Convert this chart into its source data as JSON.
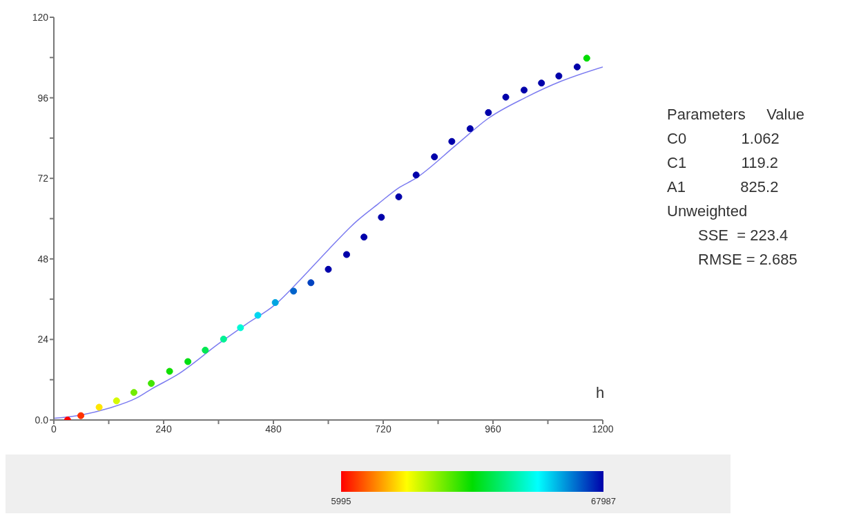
{
  "chart_data": {
    "type": "scatter",
    "xlabel": "h",
    "xlim": [
      0,
      1200
    ],
    "xticks": [
      0,
      {
        "value": 120,
        "label": null
      },
      240,
      {
        "value": 360,
        "label": null
      },
      480,
      {
        "value": 600,
        "label": null
      },
      720,
      {
        "value": 840,
        "label": null
      },
      960,
      {
        "value": 1080,
        "label": null
      },
      1200
    ],
    "ylim": [
      0,
      120
    ],
    "yticks": [
      {
        "value": 0,
        "label": "0.0"
      },
      {
        "value": 12,
        "label": null
      },
      24,
      {
        "value": 36,
        "label": null
      },
      48,
      {
        "value": 60,
        "label": null
      },
      72,
      {
        "value": 84,
        "label": null
      },
      96,
      {
        "value": 108,
        "label": null
      },
      120
    ],
    "grid": false,
    "marker": "circle",
    "clabel": null,
    "clim": [
      5995,
      67987
    ],
    "cticks": [
      5995,
      67987
    ],
    "series": [
      {
        "x": [
          30,
          59,
          99,
          137,
          175,
          213,
          253,
          293,
          331,
          371,
          408,
          446,
          484,
          524,
          562,
          600,
          640,
          678,
          716,
          754,
          792,
          832,
          870,
          910,
          950,
          988,
          1028,
          1066,
          1104,
          1144,
          1165
        ],
        "values": [
          0,
          1.3,
          3.8,
          5.7,
          8.2,
          10.9,
          14.5,
          17.4,
          20.8,
          24.1,
          27.5,
          31.2,
          35,
          38.4,
          40.9,
          44.9,
          49.3,
          54.5,
          60.4,
          66.5,
          73,
          78.4,
          83,
          86.8,
          91.6,
          96.2,
          98.3,
          100.4,
          102.5,
          105.2,
          107.8
        ],
        "colors": [
          "#ff0000",
          "#ff3100",
          "#ffe600",
          "#d6fa00",
          "#73ec00",
          "#42e600",
          "#10df00",
          "#00df11",
          "#00e852",
          "#00f194",
          "#00fad6",
          "#00d6f1",
          "#00a5e1",
          "#0063cb",
          "#0042c0",
          "#0000aa",
          "#0000aa",
          "#0000aa",
          "#0000aa",
          "#0000aa",
          "#0000aa",
          "#0000aa",
          "#0000aa",
          "#0000aa",
          "#0000aa",
          "#0000aa",
          "#0000aa",
          "#0000aa",
          "#0000aa",
          "#0000aa",
          "#00dd00"
        ],
        "cvalues": [
          5995,
          9000,
          20000,
          24000,
          30000,
          33000,
          36000,
          38000,
          42000,
          46000,
          50000,
          55000,
          58000,
          62000,
          64000,
          67987,
          67987,
          67987,
          67987,
          67987,
          67987,
          67987,
          67987,
          67987,
          67987,
          67987,
          67987,
          67987,
          67987,
          67987,
          37000
        ]
      },
      {
        "type": "line",
        "color": "#7b7bf0",
        "line_style": "solid",
        "marker": "none",
        "x": [
          0,
          60,
          120,
          180,
          213,
          270,
          361,
          420,
          484,
          540,
          600,
          660,
          710,
          752,
          791,
          880,
          951,
          1030,
          1110,
          1200
        ],
        "values": [
          0.5,
          1.5,
          3.5,
          6.5,
          9.2,
          13.5,
          22.8,
          28.5,
          34.4,
          42,
          50.7,
          59,
          64.5,
          69,
          72,
          82,
          90,
          96,
          101,
          105.2
        ]
      }
    ],
    "annotations": [
      "Parameters     Value",
      "C0             1.062",
      "C1             119.2",
      "A1             825.2",
      "Unweighted",
      "SSE  = 223.4",
      "RMSE = 2.685"
    ]
  }
}
